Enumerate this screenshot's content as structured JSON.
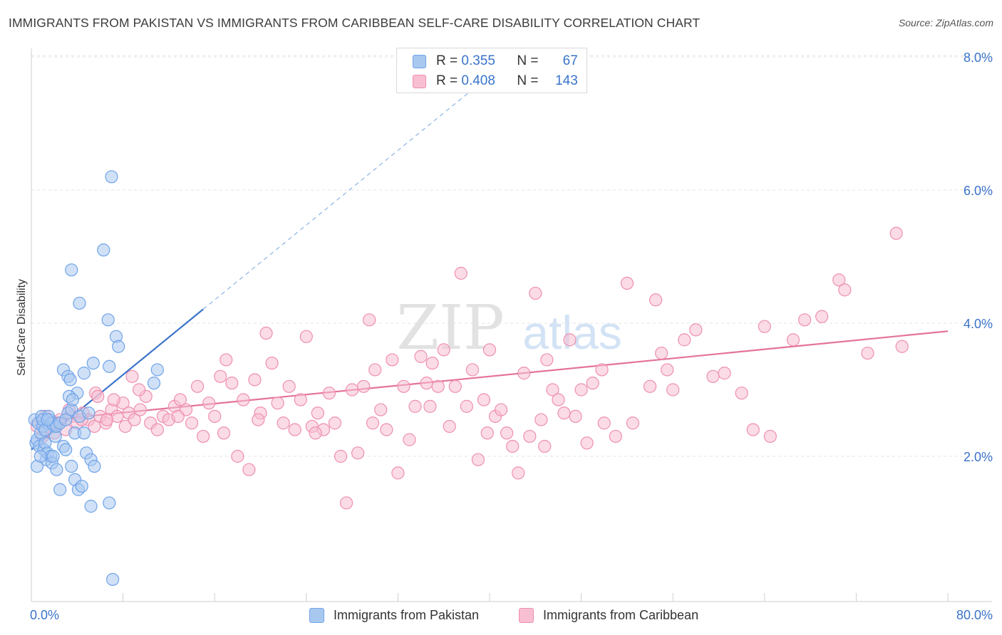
{
  "title": "IMMIGRANTS FROM PAKISTAN VS IMMIGRANTS FROM CARIBBEAN SELF-CARE DISABILITY CORRELATION CHART",
  "source": "Source: ZipAtlas.com",
  "watermark": {
    "zip": "ZIP",
    "atlas": "atlas"
  },
  "legend": {
    "rows": [
      {
        "r_label": "R =",
        "r_value": "0.355",
        "n_label": "N =",
        "n_value": "67",
        "color": "#6fa3e8"
      },
      {
        "r_label": "R =",
        "r_value": "0.408",
        "n_label": "N =",
        "n_value": "143",
        "color": "#ee8fae"
      }
    ]
  },
  "bottom_legend": [
    {
      "label": "Immigrants from Pakistan"
    },
    {
      "label": "Immigrants from Caribbean"
    }
  ],
  "chart_data": {
    "type": "scatter",
    "title": "IMMIGRANTS FROM PAKISTAN VS IMMIGRANTS FROM CARIBBEAN SELF-CARE DISABILITY CORRELATION CHART",
    "xlabel": "",
    "ylabel": "Self-Care Disability",
    "xlim": [
      0,
      80
    ],
    "ylim": [
      0,
      8.0
    ],
    "x_tick_labels": [
      "0.0%",
      "80.0%"
    ],
    "y_ticks": [
      2.0,
      4.0,
      6.0,
      8.0
    ],
    "y_tick_labels": [
      "2.0%",
      "4.0%",
      "6.0%",
      "8.0%"
    ],
    "grid": true,
    "colors": {
      "pakistan": "#3a73c9",
      "caribbean": "#e4739a",
      "pakistan_fill": "#a9c8f0",
      "caribbean_fill": "#f7bfd1"
    },
    "series": [
      {
        "name": "Immigrants from Pakistan",
        "r": 0.355,
        "n": 67,
        "trend": {
          "x0": 0.0,
          "y0": 2.1,
          "x1": 15.0,
          "y1": 4.21,
          "dash_x1": 40.0,
          "dash_y1": 7.72
        },
        "points": [
          [
            0.3,
            2.55
          ],
          [
            0.4,
            2.2
          ],
          [
            0.5,
            2.25
          ],
          [
            0.6,
            2.5
          ],
          [
            0.7,
            2.15
          ],
          [
            0.8,
            2.35
          ],
          [
            0.9,
            2.6
          ],
          [
            1.0,
            2.45
          ],
          [
            1.1,
            2.1
          ],
          [
            1.2,
            2.2
          ],
          [
            1.3,
            1.95
          ],
          [
            1.4,
            2.05
          ],
          [
            1.5,
            2.5
          ],
          [
            1.6,
            2.55
          ],
          [
            1.7,
            2.0
          ],
          [
            1.8,
            1.9
          ],
          [
            1.9,
            2.0
          ],
          [
            2.0,
            2.45
          ],
          [
            2.1,
            2.3
          ],
          [
            2.2,
            1.8
          ],
          [
            0.5,
            1.85
          ],
          [
            0.8,
            2.0
          ],
          [
            1.0,
            2.55
          ],
          [
            1.2,
            2.4
          ],
          [
            1.5,
            2.6
          ],
          [
            1.8,
            2.5
          ],
          [
            2.2,
            2.45
          ],
          [
            2.5,
            2.5
          ],
          [
            2.8,
            2.15
          ],
          [
            3.0,
            2.1
          ],
          [
            3.2,
            2.65
          ],
          [
            3.5,
            2.7
          ],
          [
            3.8,
            2.35
          ],
          [
            4.0,
            2.95
          ],
          [
            4.2,
            2.6
          ],
          [
            4.6,
            2.35
          ],
          [
            4.8,
            2.05
          ],
          [
            5.0,
            2.65
          ],
          [
            5.2,
            1.95
          ],
          [
            5.5,
            1.85
          ],
          [
            3.0,
            2.55
          ],
          [
            3.3,
            2.9
          ],
          [
            3.6,
            2.85
          ],
          [
            2.5,
            1.5
          ],
          [
            3.5,
            1.85
          ],
          [
            3.8,
            1.65
          ],
          [
            4.1,
            1.5
          ],
          [
            4.4,
            1.55
          ],
          [
            5.2,
            1.25
          ],
          [
            6.8,
            1.3
          ],
          [
            2.8,
            3.3
          ],
          [
            3.2,
            3.2
          ],
          [
            3.4,
            3.15
          ],
          [
            4.6,
            3.25
          ],
          [
            5.4,
            3.4
          ],
          [
            6.8,
            3.35
          ],
          [
            11.0,
            3.3
          ],
          [
            10.7,
            3.1
          ],
          [
            7.4,
            3.8
          ],
          [
            7.6,
            3.65
          ],
          [
            6.7,
            4.05
          ],
          [
            4.2,
            4.3
          ],
          [
            3.5,
            4.8
          ],
          [
            6.3,
            5.1
          ],
          [
            7.0,
            6.2
          ],
          [
            7.1,
            0.15
          ],
          [
            1.4,
            2.55
          ]
        ]
      },
      {
        "name": "Immigrants from Caribbean",
        "r": 0.408,
        "n": 143,
        "trend": {
          "x0": 0.0,
          "y0": 2.52,
          "x1": 80.0,
          "y1": 3.88
        },
        "points": [
          [
            0.5,
            2.45
          ],
          [
            1.0,
            2.3
          ],
          [
            1.5,
            2.5
          ],
          [
            2.0,
            2.35
          ],
          [
            2.5,
            2.55
          ],
          [
            3.0,
            2.4
          ],
          [
            3.5,
            2.6
          ],
          [
            4.0,
            2.5
          ],
          [
            4.5,
            2.65
          ],
          [
            5.0,
            2.55
          ],
          [
            5.5,
            2.45
          ],
          [
            6.0,
            2.6
          ],
          [
            6.5,
            2.5
          ],
          [
            7.0,
            2.7
          ],
          [
            7.5,
            2.6
          ],
          [
            8.0,
            2.8
          ],
          [
            8.5,
            2.65
          ],
          [
            9.0,
            2.55
          ],
          [
            9.5,
            2.7
          ],
          [
            10.0,
            2.9
          ],
          [
            1.2,
            2.6
          ],
          [
            2.2,
            2.5
          ],
          [
            3.3,
            2.7
          ],
          [
            4.4,
            2.55
          ],
          [
            5.6,
            2.95
          ],
          [
            6.6,
            2.55
          ],
          [
            7.2,
            2.85
          ],
          [
            8.2,
            2.45
          ],
          [
            9.4,
            3.0
          ],
          [
            10.4,
            2.5
          ],
          [
            11.0,
            2.4
          ],
          [
            11.5,
            2.6
          ],
          [
            12.0,
            2.55
          ],
          [
            12.5,
            2.75
          ],
          [
            13.0,
            2.85
          ],
          [
            13.5,
            2.7
          ],
          [
            14.0,
            2.5
          ],
          [
            14.5,
            3.05
          ],
          [
            15.0,
            2.3
          ],
          [
            15.5,
            2.8
          ],
          [
            16.0,
            2.6
          ],
          [
            16.5,
            3.2
          ],
          [
            17.0,
            3.45
          ],
          [
            17.5,
            3.1
          ],
          [
            18.0,
            2.0
          ],
          [
            18.5,
            2.85
          ],
          [
            19.0,
            1.8
          ],
          [
            19.5,
            3.15
          ],
          [
            20.0,
            2.65
          ],
          [
            20.5,
            3.85
          ],
          [
            21.0,
            3.4
          ],
          [
            21.5,
            2.8
          ],
          [
            22.0,
            2.5
          ],
          [
            22.5,
            3.05
          ],
          [
            23.0,
            2.4
          ],
          [
            23.5,
            2.85
          ],
          [
            24.0,
            3.8
          ],
          [
            24.5,
            2.45
          ],
          [
            25.0,
            2.65
          ],
          [
            25.5,
            2.4
          ],
          [
            26.0,
            2.95
          ],
          [
            26.5,
            2.5
          ],
          [
            27.0,
            2.0
          ],
          [
            27.5,
            1.3
          ],
          [
            28.0,
            3.0
          ],
          [
            28.5,
            2.05
          ],
          [
            29.0,
            3.05
          ],
          [
            29.5,
            4.05
          ],
          [
            30.0,
            3.3
          ],
          [
            30.5,
            2.7
          ],
          [
            31.0,
            2.4
          ],
          [
            31.5,
            3.45
          ],
          [
            32.0,
            1.75
          ],
          [
            32.5,
            3.05
          ],
          [
            33.0,
            2.25
          ],
          [
            33.5,
            2.75
          ],
          [
            34.0,
            3.5
          ],
          [
            34.5,
            3.1
          ],
          [
            35.0,
            3.4
          ],
          [
            35.5,
            3.05
          ],
          [
            36.0,
            3.6
          ],
          [
            36.5,
            2.45
          ],
          [
            37.0,
            3.05
          ],
          [
            37.5,
            4.75
          ],
          [
            38.0,
            2.75
          ],
          [
            38.5,
            3.3
          ],
          [
            39.0,
            1.95
          ],
          [
            39.5,
            2.85
          ],
          [
            40.0,
            3.6
          ],
          [
            40.5,
            2.6
          ],
          [
            41.0,
            2.7
          ],
          [
            41.5,
            2.35
          ],
          [
            42.0,
            2.15
          ],
          [
            42.5,
            1.75
          ],
          [
            43.0,
            3.25
          ],
          [
            43.5,
            2.3
          ],
          [
            44.0,
            4.45
          ],
          [
            44.5,
            2.55
          ],
          [
            45.0,
            3.45
          ],
          [
            45.5,
            3.0
          ],
          [
            46.0,
            2.85
          ],
          [
            46.5,
            2.65
          ],
          [
            47.0,
            3.75
          ],
          [
            47.5,
            2.6
          ],
          [
            48.0,
            3.0
          ],
          [
            48.5,
            2.2
          ],
          [
            49.0,
            3.1
          ],
          [
            50.0,
            2.5
          ],
          [
            51.0,
            2.3
          ],
          [
            52.0,
            4.6
          ],
          [
            52.5,
            2.5
          ],
          [
            54.0,
            3.05
          ],
          [
            54.5,
            4.35
          ],
          [
            55.0,
            3.55
          ],
          [
            55.5,
            3.3
          ],
          [
            56.0,
            3.0
          ],
          [
            57.0,
            3.75
          ],
          [
            58.0,
            3.9
          ],
          [
            59.5,
            3.2
          ],
          [
            60.5,
            3.25
          ],
          [
            62.0,
            2.95
          ],
          [
            63.0,
            2.4
          ],
          [
            64.0,
            3.95
          ],
          [
            64.5,
            2.3
          ],
          [
            66.5,
            3.75
          ],
          [
            67.5,
            4.05
          ],
          [
            69.0,
            4.1
          ],
          [
            70.5,
            4.65
          ],
          [
            71.0,
            4.5
          ],
          [
            73.0,
            3.55
          ],
          [
            75.5,
            5.35
          ],
          [
            76.0,
            3.65
          ],
          [
            5.8,
            2.9
          ],
          [
            8.8,
            3.2
          ],
          [
            12.8,
            2.6
          ],
          [
            16.8,
            2.35
          ],
          [
            19.8,
            2.55
          ],
          [
            24.8,
            2.35
          ],
          [
            29.8,
            2.5
          ],
          [
            34.8,
            2.75
          ],
          [
            39.8,
            2.35
          ],
          [
            44.8,
            2.15
          ],
          [
            49.8,
            3.3
          ]
        ]
      }
    ]
  }
}
